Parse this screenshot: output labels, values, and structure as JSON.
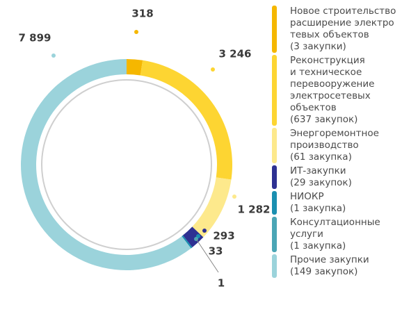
{
  "chart_data": {
    "type": "donut",
    "categories": [
      "Новое строительство\nрасширение электро\nтевых объектов\n(3 закупки)",
      "Реконструкция\nи техническое\nперевооружение\nэлектросетевых\nобъектов\n(637 закупок)",
      "Энергоремонтное\nпроизводство\n(61 закупка)",
      "ИТ-закупки\n(29 закупок)",
      "НИОКР\n(1 закупка)",
      "Консултационные\nуслуги\n(1 закупка)",
      "Прочие закупки\n(149 закупок)"
    ],
    "values": [
      318,
      3246,
      1282,
      293,
      33,
      1,
      7899
    ],
    "value_labels": [
      "318",
      "3 246",
      "1 282",
      "293",
      "33",
      "1",
      "7 899"
    ],
    "colors": [
      "#f5b700",
      "#fdd532",
      "#fde98c",
      "#2e3192",
      "#1a8fb0",
      "#4aa5b5",
      "#9bd3db"
    ]
  }
}
